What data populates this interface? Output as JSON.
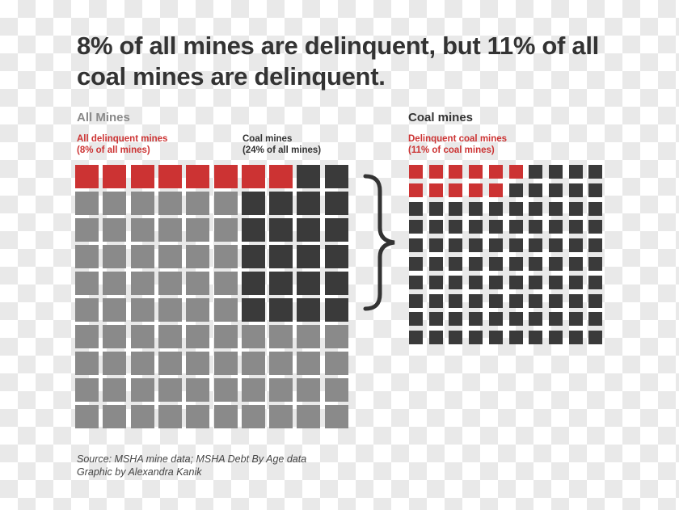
{
  "title": "8% of all mines are delinquent, but 11% of all coal mines are delinquent.",
  "colors": {
    "delinquent": "#cc3333",
    "coal": "#3a3a3a",
    "other": "#8a8a8a",
    "text_gray": "#8a8a8a"
  },
  "chart_data": [
    {
      "type": "waffle",
      "title": "All Mines",
      "grid": [
        10,
        10
      ],
      "total_cells": 100,
      "annotations": [
        {
          "text1": "All delinquent mines",
          "text2": "(8% of all mines)"
        },
        {
          "text1": "Coal mines",
          "text2": "(24% of all mines)"
        }
      ],
      "categories": [
        {
          "name": "All delinquent mines",
          "percent": 8,
          "color": "#cc3333"
        },
        {
          "name": "Coal mines",
          "percent": 24,
          "color": "#3a3a3a"
        }
      ]
    },
    {
      "type": "waffle",
      "title": "Coal mines",
      "grid": [
        10,
        10
      ],
      "total_cells": 100,
      "annotations": [
        {
          "text1": "Delinquent coal mines",
          "text2": "(11% of coal mines)"
        }
      ],
      "categories": [
        {
          "name": "Delinquent coal mines",
          "percent": 11,
          "color": "#cc3333"
        }
      ]
    }
  ],
  "source": {
    "line1": "Source: MSHA mine data; MSHA Debt By Age data",
    "line2": "Graphic by Alexandra Kanik"
  }
}
